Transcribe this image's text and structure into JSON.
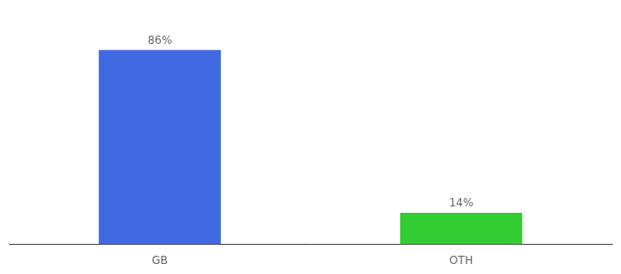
{
  "chart_data": {
    "type": "bar",
    "categories": [
      "GB",
      "OTH"
    ],
    "values": [
      86,
      14
    ],
    "value_labels": [
      "86%",
      "14%"
    ],
    "colors": [
      "#4169E1",
      "#33CC33"
    ],
    "ylim": [
      0,
      100
    ],
    "grid": false,
    "data_labels": true,
    "tick_labels": "x"
  }
}
